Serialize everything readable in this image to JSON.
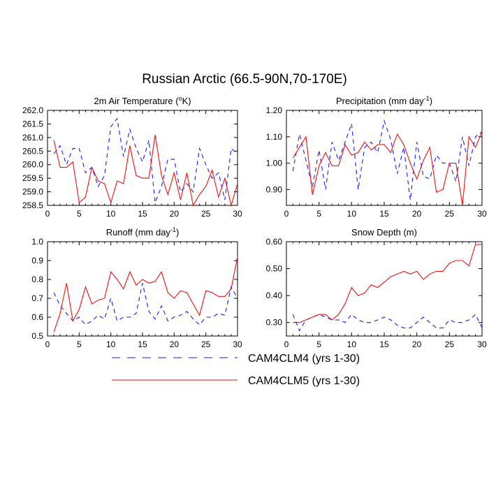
{
  "figure": {
    "title": "Russian Arctic (66.5-90N,70-170E)"
  },
  "legend": [
    {
      "name": "CAM4CLM4 (yrs 1-30)",
      "color": "#1a1aff",
      "dash": "dashed"
    },
    {
      "name": "CAM4CLM5 (yrs 1-30)",
      "color": "#ee1111",
      "dash": "solid"
    }
  ],
  "chart_data": [
    {
      "type": "line",
      "title_main": "2m Air Temperature (",
      "title_sup": "o",
      "title_end": "K)",
      "x": [
        1,
        2,
        3,
        4,
        5,
        6,
        7,
        8,
        9,
        10,
        11,
        12,
        13,
        14,
        15,
        16,
        17,
        18,
        19,
        20,
        21,
        22,
        23,
        24,
        25,
        26,
        27,
        28,
        29,
        30
      ],
      "xlim": [
        0,
        30
      ],
      "xticks": [
        "0",
        "5",
        "10",
        "15",
        "20",
        "25",
        "30"
      ],
      "ylim": [
        258.5,
        262.0
      ],
      "yticks": [
        "258.5",
        "259.0",
        "259.5",
        "260.0",
        "260.5",
        "261.0",
        "261.5",
        "262.0"
      ],
      "series": [
        {
          "name": "CAM4CLM4 (yrs 1-30)",
          "values": [
            260.4,
            260.7,
            260.0,
            260.6,
            260.6,
            259.7,
            259.9,
            259.2,
            259.6,
            261.4,
            261.7,
            260.3,
            261.3,
            260.6,
            260.1,
            260.9,
            258.6,
            259.2,
            260.2,
            260.2,
            259.0,
            259.3,
            259.0,
            260.6,
            260.0,
            259.5,
            259.7,
            258.7,
            260.6,
            260.4
          ]
        },
        {
          "name": "CAM4CLM5 (yrs 1-30)",
          "values": [
            260.9,
            259.9,
            259.9,
            260.1,
            258.6,
            258.8,
            259.9,
            259.4,
            259.3,
            258.6,
            259.4,
            259.3,
            260.7,
            259.6,
            259.5,
            259.5,
            261.1,
            259.6,
            258.9,
            259.7,
            258.7,
            259.7,
            258.5,
            258.9,
            259.2,
            259.8,
            258.8,
            259.5,
            258.5,
            259.3
          ]
        }
      ]
    },
    {
      "type": "line",
      "title_main": "Precipitation (mm day",
      "title_sup": "-1",
      "title_end": ")",
      "x": [
        1,
        2,
        3,
        4,
        5,
        6,
        7,
        8,
        9,
        10,
        11,
        12,
        13,
        14,
        15,
        16,
        17,
        18,
        19,
        20,
        21,
        22,
        23,
        24,
        25,
        26,
        27,
        28,
        29,
        30
      ],
      "xlim": [
        0,
        30
      ],
      "xticks": [
        "0",
        "5",
        "10",
        "15",
        "20",
        "25",
        "30"
      ],
      "ylim": [
        0.84,
        1.2
      ],
      "yticks": [
        "0.90",
        "1.00",
        "1.10",
        "1.20"
      ],
      "series": [
        {
          "name": "CAM4CLM4 (yrs 1-30)",
          "values": [
            0.97,
            1.11,
            1.01,
            0.91,
            1.05,
            0.9,
            1.08,
            1.01,
            1.08,
            1.15,
            0.9,
            1.06,
            1.08,
            1.04,
            1.16,
            1.09,
            0.96,
            1.06,
            0.86,
            1.08,
            0.95,
            0.94,
            1.03,
            1.0,
            1.0,
            0.93,
            1.1,
            0.99,
            1.1,
            1.12
          ]
        },
        {
          "name": "CAM4CLM5 (yrs 1-30)",
          "values": [
            1.02,
            1.06,
            1.1,
            0.88,
            0.99,
            1.04,
            0.99,
            0.99,
            1.07,
            1.03,
            1.04,
            1.08,
            1.05,
            1.07,
            1.07,
            1.04,
            1.11,
            1.07,
            1.0,
            0.94,
            1.01,
            1.06,
            0.89,
            0.9,
            1.0,
            1.0,
            0.84,
            1.1,
            1.06,
            1.12
          ]
        }
      ]
    },
    {
      "type": "line",
      "title_main": "Runoff (mm day",
      "title_sup": "-1",
      "title_end": ")",
      "x": [
        1,
        2,
        3,
        4,
        5,
        6,
        7,
        8,
        9,
        10,
        11,
        12,
        13,
        14,
        15,
        16,
        17,
        18,
        19,
        20,
        21,
        22,
        23,
        24,
        25,
        26,
        27,
        28,
        29,
        30
      ],
      "xlim": [
        0,
        30
      ],
      "xticks": [
        "0",
        "5",
        "10",
        "15",
        "20",
        "25",
        "30"
      ],
      "ylim": [
        0.5,
        1.0
      ],
      "yticks": [
        "0.5",
        "0.6",
        "0.7",
        "0.8",
        "0.9",
        "1.0"
      ],
      "series": [
        {
          "name": "CAM4CLM4 (yrs 1-30)",
          "values": [
            0.73,
            0.66,
            0.62,
            0.58,
            0.6,
            0.56,
            0.58,
            0.61,
            0.59,
            0.7,
            0.58,
            0.6,
            0.6,
            0.62,
            0.78,
            0.63,
            0.59,
            0.66,
            0.58,
            0.6,
            0.61,
            0.63,
            0.59,
            0.56,
            0.6,
            0.6,
            0.62,
            0.61,
            0.76,
            0.7
          ]
        },
        {
          "name": "CAM4CLM5 (yrs 1-30)",
          "values": [
            0.52,
            0.62,
            0.78,
            0.58,
            0.64,
            0.76,
            0.67,
            0.69,
            0.7,
            0.84,
            0.8,
            0.75,
            0.84,
            0.77,
            0.8,
            0.78,
            0.79,
            0.84,
            0.73,
            0.7,
            0.74,
            0.73,
            0.67,
            0.61,
            0.74,
            0.73,
            0.71,
            0.71,
            0.75,
            0.92
          ]
        }
      ]
    },
    {
      "type": "line",
      "title_main": "Snow Depth (m)",
      "title_sup": "",
      "title_end": "",
      "x": [
        1,
        2,
        3,
        4,
        5,
        6,
        7,
        8,
        9,
        10,
        11,
        12,
        13,
        14,
        15,
        16,
        17,
        18,
        19,
        20,
        21,
        22,
        23,
        24,
        25,
        26,
        27,
        28,
        29,
        30
      ],
      "xlim": [
        0,
        30
      ],
      "xticks": [
        "0",
        "5",
        "10",
        "15",
        "20",
        "25",
        "30"
      ],
      "ylim": [
        0.25,
        0.6
      ],
      "yticks": [
        "0.30",
        "0.40",
        "0.50",
        "0.60"
      ],
      "series": [
        {
          "name": "CAM4CLM4 (yrs 1-30)",
          "values": [
            0.33,
            0.27,
            0.31,
            0.32,
            0.33,
            0.32,
            0.31,
            0.31,
            0.3,
            0.33,
            0.31,
            0.3,
            0.3,
            0.31,
            0.32,
            0.31,
            0.29,
            0.28,
            0.28,
            0.3,
            0.32,
            0.3,
            0.28,
            0.28,
            0.31,
            0.3,
            0.3,
            0.31,
            0.33,
            0.28
          ]
        },
        {
          "name": "CAM4CLM5 (yrs 1-30)",
          "values": [
            0.3,
            0.3,
            0.31,
            0.32,
            0.33,
            0.33,
            0.31,
            0.33,
            0.37,
            0.43,
            0.4,
            0.41,
            0.44,
            0.43,
            0.45,
            0.47,
            0.48,
            0.49,
            0.48,
            0.49,
            0.46,
            0.48,
            0.49,
            0.49,
            0.52,
            0.53,
            0.53,
            0.51,
            0.59,
            0.59
          ]
        }
      ]
    }
  ]
}
